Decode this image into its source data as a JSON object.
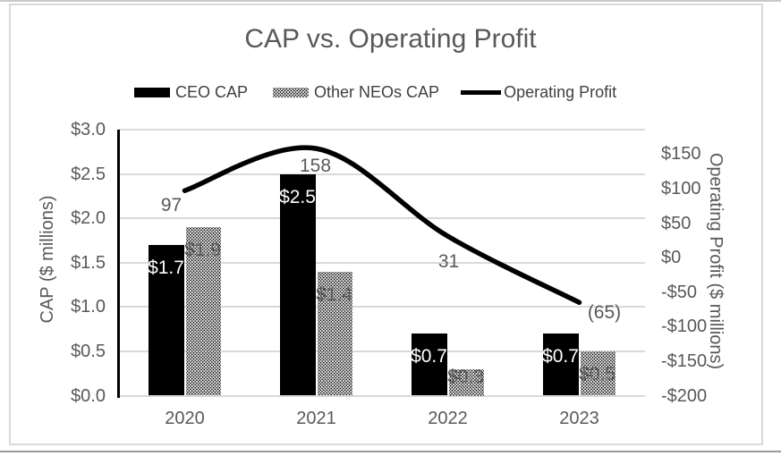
{
  "chart_data": {
    "type": "combo-bar-line",
    "title": "CAP vs. Operating Profit",
    "categories": [
      "2020",
      "2021",
      "2022",
      "2023"
    ],
    "series": [
      {
        "name": "CEO CAP",
        "chart": "bar",
        "axis": "left",
        "fill": "solid-black",
        "values": [
          1.7,
          2.5,
          0.7,
          0.7
        ],
        "data_labels": [
          "$1.7",
          "$2.5",
          "$0.7",
          "$0.7"
        ]
      },
      {
        "name": "Other NEOs CAP",
        "chart": "bar",
        "axis": "left",
        "fill": "dotted-pattern",
        "values": [
          1.9,
          1.4,
          0.3,
          0.5
        ],
        "data_labels": [
          "$1.9",
          "$1.4",
          "$0.3",
          "$0.5"
        ]
      },
      {
        "name": "Operating Profit",
        "chart": "line",
        "axis": "right",
        "fill": "thick-black-line",
        "values": [
          97,
          158,
          31,
          -65
        ],
        "data_labels": [
          "97",
          "158",
          "31",
          "(65)"
        ]
      }
    ],
    "left_axis": {
      "title": "CAP ($ millions)",
      "min": 0,
      "max": 3.0,
      "step": 0.5,
      "tick_labels": [
        "$0.0",
        "$0.5",
        "$1.0",
        "$1.5",
        "$2.0",
        "$2.5",
        "$3.0"
      ]
    },
    "right_axis": {
      "title": "Operating Profit ($ millions)",
      "min": -200,
      "max": 150,
      "step": 50,
      "tick_labels": [
        "$150",
        "$100",
        "$50",
        "$0",
        "-$50",
        "-$100",
        "-$150",
        "-$200"
      ]
    },
    "x_axis": {
      "tick_labels": [
        "2020",
        "2021",
        "2022",
        "2023"
      ]
    },
    "grid": true,
    "legend_position": "top-center",
    "colors": {
      "bar": "#000000",
      "line": "#000000",
      "grid": "#d9d9d9",
      "axis_text": "#595959",
      "data_label_text": "#595959",
      "data_label_on_bar": "#ffffff",
      "title_text": "#595959",
      "frame_border": "#d9d9d9",
      "background": "#ffffff"
    }
  }
}
